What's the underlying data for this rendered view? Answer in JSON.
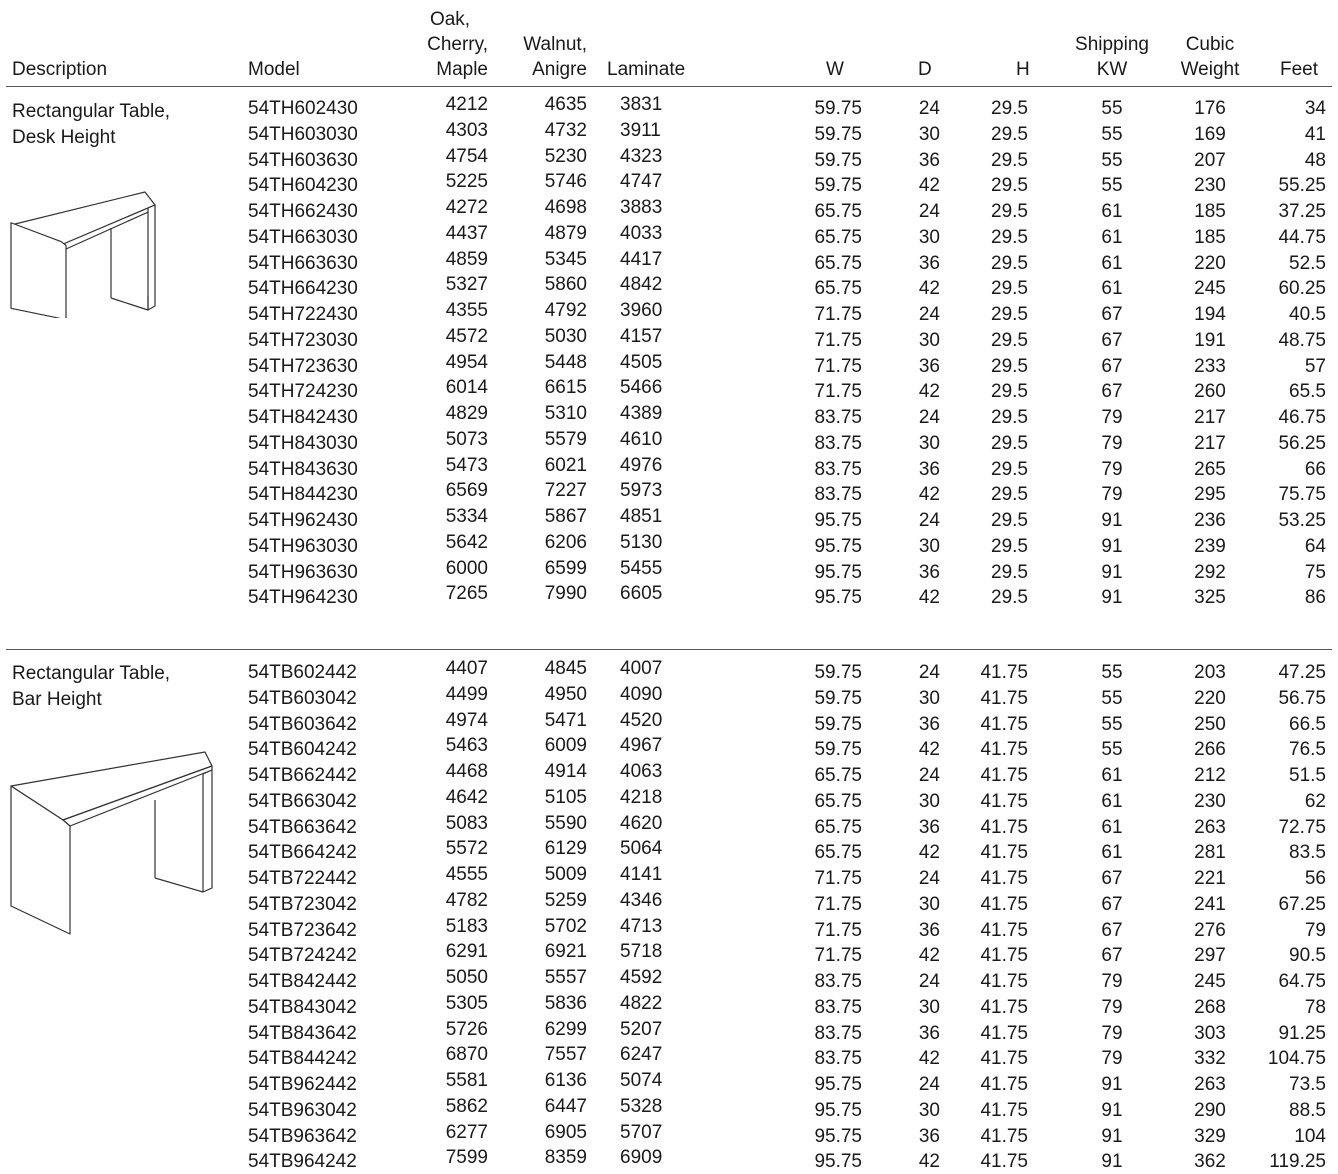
{
  "columns": {
    "description": "Description",
    "model": "Model",
    "oak": [
      "Oak,",
      "Cherry,",
      "Maple"
    ],
    "walnut": [
      "Walnut,",
      "Anigre"
    ],
    "laminate": "Laminate",
    "w": "W",
    "d": "D",
    "h": "H",
    "shipping": [
      "Shipping",
      "KW"
    ],
    "cubic": [
      "Cubic",
      "Weight"
    ],
    "feet": "Feet"
  },
  "sections": [
    {
      "description": [
        "Rectangular Table,",
        "Desk Height"
      ],
      "illustration": "desk-height-table-icon",
      "rows": [
        [
          "54TH602430",
          "4212",
          "4635",
          "3831",
          "59.75",
          "24",
          "29.5",
          "55",
          "176",
          "34"
        ],
        [
          "54TH603030",
          "4303",
          "4732",
          "3911",
          "59.75",
          "30",
          "29.5",
          "55",
          "169",
          "41"
        ],
        [
          "54TH603630",
          "4754",
          "5230",
          "4323",
          "59.75",
          "36",
          "29.5",
          "55",
          "207",
          "48"
        ],
        [
          "54TH604230",
          "5225",
          "5746",
          "4747",
          "59.75",
          "42",
          "29.5",
          "55",
          "230",
          "55.25"
        ],
        [
          "54TH662430",
          "4272",
          "4698",
          "3883",
          "65.75",
          "24",
          "29.5",
          "61",
          "185",
          "37.25"
        ],
        [
          "54TH663030",
          "4437",
          "4879",
          "4033",
          "65.75",
          "30",
          "29.5",
          "61",
          "185",
          "44.75"
        ],
        [
          "54TH663630",
          "4859",
          "5345",
          "4417",
          "65.75",
          "36",
          "29.5",
          "61",
          "220",
          "52.5"
        ],
        [
          "54TH664230",
          "5327",
          "5860",
          "4842",
          "65.75",
          "42",
          "29.5",
          "61",
          "245",
          "60.25"
        ],
        [
          "54TH722430",
          "4355",
          "4792",
          "3960",
          "71.75",
          "24",
          "29.5",
          "67",
          "194",
          "40.5"
        ],
        [
          "54TH723030",
          "4572",
          "5030",
          "4157",
          "71.75",
          "30",
          "29.5",
          "67",
          "191",
          "48.75"
        ],
        [
          "54TH723630",
          "4954",
          "5448",
          "4505",
          "71.75",
          "36",
          "29.5",
          "67",
          "233",
          "57"
        ],
        [
          "54TH724230",
          "6014",
          "6615",
          "5466",
          "71.75",
          "42",
          "29.5",
          "67",
          "260",
          "65.5"
        ],
        [
          "54TH842430",
          "4829",
          "5310",
          "4389",
          "83.75",
          "24",
          "29.5",
          "79",
          "217",
          "46.75"
        ],
        [
          "54TH843030",
          "5073",
          "5579",
          "4610",
          "83.75",
          "30",
          "29.5",
          "79",
          "217",
          "56.25"
        ],
        [
          "54TH843630",
          "5473",
          "6021",
          "4976",
          "83.75",
          "36",
          "29.5",
          "79",
          "265",
          "66"
        ],
        [
          "54TH844230",
          "6569",
          "7227",
          "5973",
          "83.75",
          "42",
          "29.5",
          "79",
          "295",
          "75.75"
        ],
        [
          "54TH962430",
          "5334",
          "5867",
          "4851",
          "95.75",
          "24",
          "29.5",
          "91",
          "236",
          "53.25"
        ],
        [
          "54TH963030",
          "5642",
          "6206",
          "5130",
          "95.75",
          "30",
          "29.5",
          "91",
          "239",
          "64"
        ],
        [
          "54TH963630",
          "6000",
          "6599",
          "5455",
          "95.75",
          "36",
          "29.5",
          "91",
          "292",
          "75"
        ],
        [
          "54TH964230",
          "7265",
          "7990",
          "6605",
          "95.75",
          "42",
          "29.5",
          "91",
          "325",
          "86"
        ]
      ]
    },
    {
      "description": [
        "Rectangular Table,",
        "Bar Height"
      ],
      "illustration": "bar-height-table-icon",
      "rows": [
        [
          "54TB602442",
          "4407",
          "4845",
          "4007",
          "59.75",
          "24",
          "41.75",
          "55",
          "203",
          "47.25"
        ],
        [
          "54TB603042",
          "4499",
          "4950",
          "4090",
          "59.75",
          "30",
          "41.75",
          "55",
          "220",
          "56.75"
        ],
        [
          "54TB603642",
          "4974",
          "5471",
          "4520",
          "59.75",
          "36",
          "41.75",
          "55",
          "250",
          "66.5"
        ],
        [
          "54TB604242",
          "5463",
          "6009",
          "4967",
          "59.75",
          "42",
          "41.75",
          "55",
          "266",
          "76.5"
        ],
        [
          "54TB662442",
          "4468",
          "4914",
          "4063",
          "65.75",
          "24",
          "41.75",
          "61",
          "212",
          "51.5"
        ],
        [
          "54TB663042",
          "4642",
          "5105",
          "4218",
          "65.75",
          "30",
          "41.75",
          "61",
          "230",
          "62"
        ],
        [
          "54TB663642",
          "5083",
          "5590",
          "4620",
          "65.75",
          "36",
          "41.75",
          "61",
          "263",
          "72.75"
        ],
        [
          "54TB664242",
          "5572",
          "6129",
          "5064",
          "65.75",
          "42",
          "41.75",
          "61",
          "281",
          "83.5"
        ],
        [
          "54TB722442",
          "4555",
          "5009",
          "4141",
          "71.75",
          "24",
          "41.75",
          "67",
          "221",
          "56"
        ],
        [
          "54TB723042",
          "4782",
          "5259",
          "4346",
          "71.75",
          "30",
          "41.75",
          "67",
          "241",
          "67.25"
        ],
        [
          "54TB723642",
          "5183",
          "5702",
          "4713",
          "71.75",
          "36",
          "41.75",
          "67",
          "276",
          "79"
        ],
        [
          "54TB724242",
          "6291",
          "6921",
          "5718",
          "71.75",
          "42",
          "41.75",
          "67",
          "297",
          "90.5"
        ],
        [
          "54TB842442",
          "5050",
          "5557",
          "4592",
          "83.75",
          "24",
          "41.75",
          "79",
          "245",
          "64.75"
        ],
        [
          "54TB843042",
          "5305",
          "5836",
          "4822",
          "83.75",
          "30",
          "41.75",
          "79",
          "268",
          "78"
        ],
        [
          "54TB843642",
          "5726",
          "6299",
          "5207",
          "83.75",
          "36",
          "41.75",
          "79",
          "303",
          "91.25"
        ],
        [
          "54TB844242",
          "6870",
          "7557",
          "6247",
          "83.75",
          "42",
          "41.75",
          "79",
          "332",
          "104.75"
        ],
        [
          "54TB962442",
          "5581",
          "6136",
          "5074",
          "95.75",
          "24",
          "41.75",
          "91",
          "263",
          "73.5"
        ],
        [
          "54TB963042",
          "5862",
          "6447",
          "5328",
          "95.75",
          "30",
          "41.75",
          "91",
          "290",
          "88.5"
        ],
        [
          "54TB963642",
          "6277",
          "6905",
          "5707",
          "95.75",
          "36",
          "41.75",
          "91",
          "329",
          "104"
        ],
        [
          "54TB964242",
          "7599",
          "8359",
          "6909",
          "95.75",
          "42",
          "41.75",
          "91",
          "362",
          "119.25"
        ]
      ]
    }
  ]
}
